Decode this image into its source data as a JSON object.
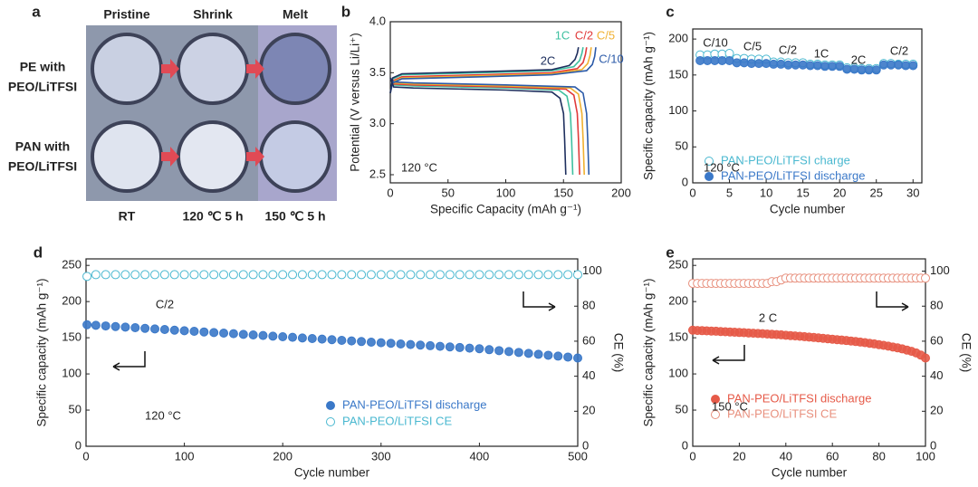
{
  "panel_a": {
    "panel": "a",
    "columns": [
      "Pristine",
      "Shrink",
      "Melt"
    ],
    "rows": [
      [
        "PE with",
        "PEO/LiTFSI"
      ],
      [
        "PAN with",
        "PEO/LiTFSI"
      ]
    ],
    "conditions": [
      "RT",
      "120 ℃ 5 h",
      "150 ℃ 5 h"
    ]
  },
  "chart_data": [
    {
      "type": "line",
      "panel": "b",
      "x_label": "Specific Capacity (mAh g⁻¹)",
      "y_label": "Potential (V versus Li/Li⁺)",
      "xlim": [
        0,
        200
      ],
      "xticks": [
        0,
        50,
        100,
        150,
        200
      ],
      "ylim": [
        2.42,
        4.0
      ],
      "yticks": [
        2.5,
        {
          "value": 3,
          "label": "3.0"
        },
        3.5,
        {
          "value": 4,
          "label": "4.0"
        }
      ],
      "annotations": [
        "120 °C"
      ],
      "series": [
        {
          "name": "1C",
          "color": "#3ec0a0",
          "x": [
            0,
            2,
            10,
            80,
            140,
            159,
            164,
            166,
            167,
            null,
            0,
            3,
            20,
            100,
            146,
            153,
            156,
            157,
            158
          ],
          "values": [
            3.3,
            3.44,
            3.48,
            3.5,
            3.52,
            3.56,
            3.62,
            3.69,
            3.75,
            null,
            3.45,
            3.38,
            3.37,
            3.35,
            3.33,
            3.27,
            3.1,
            2.85,
            2.5
          ]
        },
        {
          "name": "C/2",
          "color": "#e03a3a",
          "x": [
            0,
            2,
            10,
            80,
            140,
            162,
            167,
            169,
            170,
            null,
            0,
            3,
            20,
            100,
            152,
            159,
            162,
            163,
            164
          ],
          "values": [
            3.3,
            3.42,
            3.46,
            3.48,
            3.5,
            3.54,
            3.6,
            3.68,
            3.75,
            null,
            3.45,
            3.39,
            3.38,
            3.36,
            3.34,
            3.28,
            3.1,
            2.85,
            2.5
          ]
        },
        {
          "name": "C/5",
          "color": "#f0b030",
          "x": [
            0,
            2,
            10,
            80,
            140,
            166,
            171,
            173,
            174,
            null,
            0,
            3,
            20,
            100,
            156,
            163,
            166,
            167,
            168
          ],
          "values": [
            3.3,
            3.41,
            3.45,
            3.47,
            3.49,
            3.53,
            3.59,
            3.67,
            3.75,
            null,
            3.45,
            3.4,
            3.39,
            3.37,
            3.35,
            3.29,
            3.1,
            2.85,
            2.5
          ]
        },
        {
          "name": "C/10",
          "color": "#2b5aa8",
          "x": [
            0,
            2,
            10,
            80,
            140,
            170,
            175,
            177,
            178,
            null,
            0,
            3,
            20,
            100,
            160,
            167,
            170,
            171,
            172
          ],
          "values": [
            3.3,
            3.4,
            3.44,
            3.46,
            3.48,
            3.52,
            3.58,
            3.66,
            3.75,
            null,
            3.45,
            3.41,
            3.4,
            3.38,
            3.36,
            3.3,
            3.1,
            2.85,
            2.5
          ]
        },
        {
          "name": "2C",
          "color": "#1e2f5e",
          "x": [
            0,
            2,
            10,
            80,
            140,
            155,
            160,
            162,
            163,
            null,
            0,
            3,
            20,
            100,
            140,
            147,
            150,
            151,
            152
          ],
          "values": [
            3.3,
            3.45,
            3.49,
            3.51,
            3.53,
            3.57,
            3.63,
            3.69,
            3.75,
            null,
            3.45,
            3.36,
            3.35,
            3.33,
            3.31,
            3.25,
            3.1,
            2.85,
            2.5
          ]
        }
      ]
    },
    {
      "type": "scatter",
      "panel": "c",
      "x_label": "Cycle number",
      "y_label": "Specific capacity (mAh g⁻¹)",
      "xlim": [
        0,
        31.2
      ],
      "xticks": [
        0,
        5,
        10,
        15,
        20,
        25,
        30
      ],
      "ylim": [
        0,
        214
      ],
      "yticks": [
        0,
        50,
        100,
        150,
        200
      ],
      "annotations": [
        "C/10",
        "C/5",
        "C/2",
        "1C",
        "2C",
        "C/2",
        "120 °C"
      ],
      "legend": "lower center",
      "x": [
        1,
        2,
        3,
        4,
        5,
        6,
        7,
        8,
        9,
        10,
        11,
        12,
        13,
        14,
        15,
        16,
        17,
        18,
        19,
        20,
        21,
        22,
        23,
        24,
        25,
        26,
        27,
        28,
        29,
        30
      ],
      "series": [
        {
          "name": "PAN-PEO/LiTFSI charge",
          "color": "#4ab8d0",
          "filled": false,
          "values": [
            178,
            178,
            179,
            179,
            180,
            173,
            173,
            172,
            172,
            172,
            168,
            168,
            167,
            167,
            167,
            165,
            165,
            164,
            164,
            164,
            160,
            160,
            159,
            159,
            159,
            166,
            166,
            165,
            165,
            165
          ]
        },
        {
          "name": "PAN-PEO/LiTFSI discharge",
          "color": "#3a78c8",
          "filled": true,
          "values": [
            170,
            170,
            170,
            170,
            170,
            167,
            167,
            166,
            166,
            166,
            165,
            165,
            164,
            164,
            164,
            163,
            163,
            162,
            162,
            162,
            158,
            158,
            157,
            157,
            157,
            164,
            164,
            164,
            163,
            163
          ]
        }
      ]
    },
    {
      "type": "scatter",
      "panel": "d",
      "x_label": "Cycle number",
      "y_label": "Specific capacity (mAh g⁻¹)",
      "y2_label": "CE (%)",
      "xlim": [
        0,
        500
      ],
      "xticks": [
        0,
        100,
        200,
        300,
        400,
        500
      ],
      "ylim": [
        0,
        259
      ],
      "yticks": [
        0,
        50,
        100,
        150,
        200,
        250
      ],
      "y2lim": [
        0,
        107
      ],
      "y2ticks": [
        0,
        20,
        40,
        60,
        80,
        100
      ],
      "annotations": [
        "C/2",
        "120 °C"
      ],
      "legend": "lower right",
      "x": [
        1,
        10,
        20,
        30,
        40,
        50,
        60,
        70,
        80,
        90,
        100,
        110,
        120,
        130,
        140,
        150,
        160,
        170,
        180,
        190,
        200,
        210,
        220,
        230,
        240,
        250,
        260,
        270,
        280,
        290,
        300,
        310,
        320,
        330,
        340,
        350,
        360,
        370,
        380,
        390,
        400,
        410,
        420,
        430,
        440,
        450,
        460,
        470,
        480,
        490,
        500
      ],
      "series": [
        {
          "name": "PAN-PEO/LiTFSI discharge",
          "color": "#3a78c8",
          "filled": true,
          "values": [
            168,
            167.2,
            166.3,
            165.5,
            164.7,
            163.9,
            163.0,
            162.2,
            161.4,
            160.5,
            159.7,
            158.9,
            158.0,
            157.2,
            156.4,
            155.6,
            154.7,
            153.9,
            153.1,
            152.2,
            151.4,
            150.6,
            149.7,
            148.9,
            148.1,
            147.3,
            146.4,
            145.6,
            144.8,
            143.9,
            143.1,
            142.3,
            141.4,
            140.6,
            139.8,
            139.0,
            138.1,
            137.3,
            136.5,
            135.6,
            134.8,
            133.5,
            132.2,
            130.9,
            129.7,
            128.4,
            127.1,
            125.8,
            124.6,
            123.3,
            122.0
          ]
        },
        {
          "name": "PAN-PEO/LiTFSI CE",
          "color": "#4ab8d0",
          "filled": false,
          "axis": "y2",
          "values": [
            97,
            98,
            98,
            98,
            98,
            98,
            98,
            98,
            98,
            98,
            98,
            98,
            98,
            98,
            98,
            98,
            98,
            98,
            98,
            98,
            98,
            98,
            98,
            98,
            98,
            98,
            98,
            98,
            98,
            98,
            98,
            98,
            98,
            98,
            98,
            98,
            98,
            98,
            98,
            98,
            98,
            98,
            98,
            98,
            98,
            98,
            98,
            98,
            98,
            98,
            98
          ]
        }
      ]
    },
    {
      "type": "scatter",
      "panel": "e",
      "x_label": "Cycle number",
      "y_label": "Specific capacity (mAh g⁻¹)",
      "y2_label": "CE (%)",
      "xlim": [
        0,
        100
      ],
      "xticks": [
        0,
        20,
        40,
        60,
        80,
        100
      ],
      "ylim": [
        0,
        259
      ],
      "yticks": [
        0,
        50,
        100,
        150,
        200,
        250
      ],
      "y2lim": [
        0,
        107
      ],
      "y2ticks": [
        0,
        20,
        40,
        60,
        80,
        100
      ],
      "annotations": [
        "2 C",
        "150 °C"
      ],
      "legend": "lower center",
      "x": [
        0,
        2,
        4,
        6,
        8,
        10,
        12,
        14,
        16,
        18,
        20,
        22,
        24,
        26,
        28,
        30,
        32,
        34,
        36,
        38,
        40,
        42,
        44,
        46,
        48,
        50,
        52,
        54,
        56,
        58,
        60,
        62,
        64,
        66,
        68,
        70,
        72,
        74,
        76,
        78,
        80,
        82,
        84,
        86,
        88,
        90,
        92,
        94,
        96,
        98,
        100
      ],
      "series": [
        {
          "name": "PAN-PEO/LiTFSI discharge",
          "color": "#e65a48",
          "filled": true,
          "values": [
            160.5,
            160,
            159.8,
            159.5,
            159.2,
            159,
            158.6,
            158.3,
            158,
            157.6,
            157.3,
            157,
            156.6,
            156.3,
            156,
            155.6,
            155.2,
            154.8,
            154.4,
            154,
            153.5,
            153,
            152.5,
            152,
            151.5,
            151,
            150.4,
            149.8,
            149.2,
            148.6,
            148,
            147.4,
            146.8,
            146.2,
            145.5,
            144.8,
            144,
            143.2,
            142.4,
            141.5,
            140.5,
            139.5,
            138.4,
            137.2,
            136,
            134.6,
            133,
            131.2,
            129,
            126,
            122
          ]
        },
        {
          "name": "PAN-PEO/LiTFSI CE",
          "color": "#e8907e",
          "filled": false,
          "axis": "y2",
          "values": [
            93,
            93,
            93,
            93,
            93,
            93,
            93,
            93,
            93,
            93,
            93,
            93,
            93,
            93,
            93,
            93,
            93,
            94,
            94,
            95,
            96,
            96,
            96,
            96,
            96,
            96,
            96,
            96,
            96,
            96,
            96,
            96,
            96,
            96,
            96,
            96,
            96,
            96,
            96,
            96,
            96,
            96,
            96,
            96,
            96,
            96,
            96,
            96,
            96,
            96,
            96
          ]
        }
      ]
    }
  ]
}
